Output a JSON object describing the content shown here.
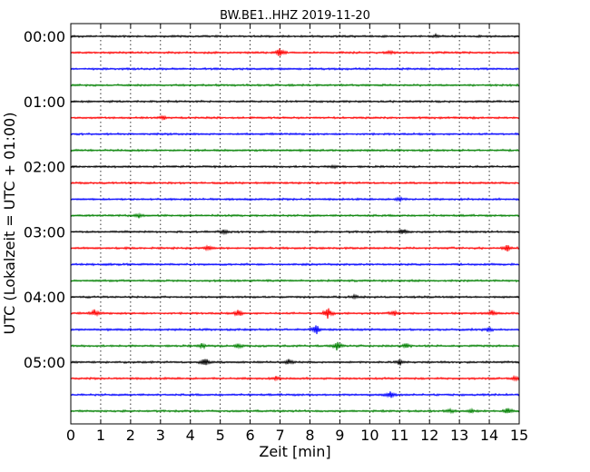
{
  "chart_data": {
    "type": "line",
    "title": "BW.BE1..HHZ 2019-11-20",
    "xlabel": "Zeit  [min]",
    "ylabel": "UTC (Lokalzeit = UTC + 01:00)",
    "xlim": [
      0,
      15
    ],
    "x_ticks": [
      "0",
      "1",
      "2",
      "3",
      "4",
      "5",
      "6",
      "7",
      "8",
      "9",
      "10",
      "11",
      "12",
      "13",
      "14",
      "15"
    ],
    "y_tick_labels": [
      "00:00",
      "01:00",
      "02:00",
      "03:00",
      "04:00",
      "05:00"
    ],
    "grid": "x-dotted",
    "trace_interval_min": 15,
    "trace_colors": [
      "#000000",
      "#ff0000",
      "#0000ff",
      "#008000"
    ],
    "series": [
      {
        "start": "00:00",
        "color": "#000000",
        "events": [
          {
            "t": 12.2,
            "amp": 0.3
          }
        ]
      },
      {
        "start": "00:15",
        "color": "#ff0000",
        "events": [
          {
            "t": 7.0,
            "amp": 0.9
          },
          {
            "t": 10.7,
            "amp": 0.3
          }
        ]
      },
      {
        "start": "00:30",
        "color": "#0000ff",
        "events": []
      },
      {
        "start": "00:45",
        "color": "#008000",
        "events": []
      },
      {
        "start": "01:00",
        "color": "#000000",
        "events": []
      },
      {
        "start": "01:15",
        "color": "#ff0000",
        "events": [
          {
            "t": 3.1,
            "amp": 0.3
          }
        ]
      },
      {
        "start": "01:30",
        "color": "#0000ff",
        "events": []
      },
      {
        "start": "01:45",
        "color": "#008000",
        "events": []
      },
      {
        "start": "02:00",
        "color": "#000000",
        "events": [
          {
            "t": 8.8,
            "amp": 0.3
          }
        ]
      },
      {
        "start": "02:15",
        "color": "#ff0000",
        "events": []
      },
      {
        "start": "02:30",
        "color": "#0000ff",
        "events": [
          {
            "t": 11.0,
            "amp": 0.5
          }
        ]
      },
      {
        "start": "02:45",
        "color": "#008000",
        "events": [
          {
            "t": 2.3,
            "amp": 0.5
          }
        ]
      },
      {
        "start": "03:00",
        "color": "#000000",
        "events": [
          {
            "t": 5.1,
            "amp": 0.4
          },
          {
            "t": 11.1,
            "amp": 0.7
          }
        ]
      },
      {
        "start": "03:15",
        "color": "#ff0000",
        "events": [
          {
            "t": 4.6,
            "amp": 0.6
          },
          {
            "t": 14.6,
            "amp": 0.6
          }
        ]
      },
      {
        "start": "03:30",
        "color": "#0000ff",
        "events": []
      },
      {
        "start": "03:45",
        "color": "#008000",
        "events": []
      },
      {
        "start": "04:00",
        "color": "#000000",
        "events": [
          {
            "t": 9.5,
            "amp": 0.4
          }
        ]
      },
      {
        "start": "04:15",
        "color": "#ff0000",
        "events": [
          {
            "t": 0.8,
            "amp": 0.7
          },
          {
            "t": 5.6,
            "amp": 0.7
          },
          {
            "t": 8.6,
            "amp": 1.2
          },
          {
            "t": 10.8,
            "amp": 0.5
          },
          {
            "t": 14.1,
            "amp": 0.6
          }
        ]
      },
      {
        "start": "04:30",
        "color": "#0000ff",
        "events": [
          {
            "t": 8.2,
            "amp": 1.0
          },
          {
            "t": 14.0,
            "amp": 0.5
          }
        ]
      },
      {
        "start": "04:45",
        "color": "#008000",
        "events": [
          {
            "t": 4.4,
            "amp": 0.5
          },
          {
            "t": 5.6,
            "amp": 0.5
          },
          {
            "t": 8.9,
            "amp": 0.8
          },
          {
            "t": 11.2,
            "amp": 0.5
          }
        ]
      },
      {
        "start": "05:00",
        "color": "#000000",
        "events": [
          {
            "t": 4.5,
            "amp": 1.0
          },
          {
            "t": 7.3,
            "amp": 0.5
          },
          {
            "t": 11.0,
            "amp": 0.7
          }
        ]
      },
      {
        "start": "05:15",
        "color": "#ff0000",
        "events": [
          {
            "t": 6.9,
            "amp": 0.4
          },
          {
            "t": 14.9,
            "amp": 0.5
          }
        ]
      },
      {
        "start": "05:30",
        "color": "#0000ff",
        "events": [
          {
            "t": 10.7,
            "amp": 0.8
          }
        ]
      },
      {
        "start": "05:45",
        "color": "#008000",
        "events": [
          {
            "t": 12.7,
            "amp": 0.4
          },
          {
            "t": 13.4,
            "amp": 0.4
          },
          {
            "t": 14.6,
            "amp": 0.7
          }
        ]
      }
    ]
  }
}
